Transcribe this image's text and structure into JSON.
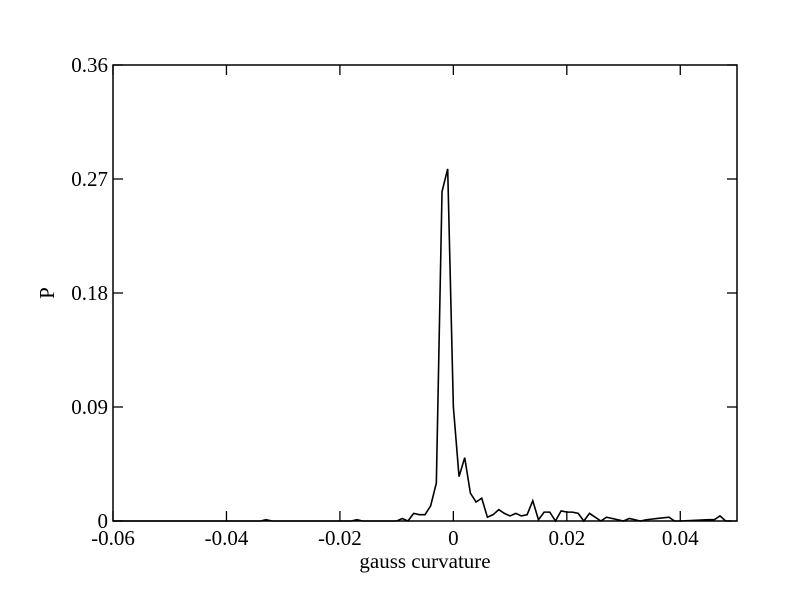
{
  "chart_data": {
    "type": "line",
    "xlabel": "gauss curvature",
    "ylabel": "P",
    "xlim": [
      -0.06,
      0.05
    ],
    "ylim": [
      0,
      0.36
    ],
    "xticks": [
      -0.06,
      -0.04,
      -0.02,
      0,
      0.02,
      0.04
    ],
    "yticks": [
      0,
      0.09,
      0.18,
      0.27,
      0.36
    ],
    "x": [
      -0.06,
      -0.034,
      -0.033,
      -0.032,
      -0.018,
      -0.017,
      -0.016,
      -0.01,
      -0.009,
      -0.008,
      -0.007,
      -0.006,
      -0.005,
      -0.004,
      -0.003,
      -0.002,
      -0.001,
      0,
      0.001,
      0.002,
      0.003,
      0.004,
      0.005,
      0.006,
      0.007,
      0.008,
      0.009,
      0.01,
      0.011,
      0.012,
      0.013,
      0.014,
      0.015,
      0.016,
      0.017,
      0.018,
      0.019,
      0.02,
      0.021,
      0.022,
      0.023,
      0.024,
      0.025,
      0.026,
      0.027,
      0.029,
      0.03,
      0.031,
      0.033,
      0.034,
      0.036,
      0.038,
      0.039,
      0.04,
      0.045,
      0.046,
      0.047,
      0.048,
      0.049
    ],
    "series": [
      {
        "color": "#000000",
        "values": [
          0,
          0,
          0.001,
          0,
          0,
          0.001,
          0,
          0,
          0.002,
          0,
          0.006,
          0.005,
          0.005,
          0.012,
          0.03,
          0.26,
          0.278,
          0.09,
          0.035,
          0.05,
          0.022,
          0.015,
          0.018,
          0.003,
          0.005,
          0.009,
          0.006,
          0.004,
          0.006,
          0.004,
          0.005,
          0.016,
          0.001,
          0.007,
          0.007,
          0,
          0.008,
          0.007,
          0.007,
          0.006,
          0,
          0.006,
          0.003,
          0,
          0.003,
          0.001,
          0,
          0.002,
          0,
          0.001,
          0.002,
          0.003,
          0,
          0,
          0.001,
          0.001,
          0.004,
          0,
          0
        ]
      }
    ]
  }
}
